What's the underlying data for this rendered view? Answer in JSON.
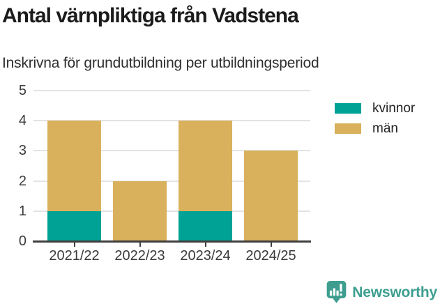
{
  "title": "Antal värnpliktiga från Vadstena",
  "subtitle": "Inskrivna för grundutbildning per utbildningsperiod",
  "chart_data": {
    "type": "bar",
    "stacked": true,
    "title": "Antal värnpliktiga från Vadstena",
    "subtitle": "Inskrivna för grundutbildning per utbildningsperiod",
    "categories": [
      "2021/22",
      "2022/23",
      "2023/24",
      "2024/25"
    ],
    "series": [
      {
        "name": "kvinnor",
        "color": "#00a296",
        "values": [
          1,
          0,
          1,
          0
        ]
      },
      {
        "name": "män",
        "color": "#d9b05b",
        "values": [
          3,
          2,
          3,
          3
        ]
      }
    ],
    "stacked_totals": [
      4,
      2,
      4,
      3
    ],
    "xlabel": "",
    "ylabel": "",
    "ylim": [
      0,
      5
    ],
    "yticks": [
      0,
      1,
      2,
      3,
      4,
      5
    ],
    "grid": true,
    "legend_position": "right"
  },
  "colors": {
    "title_text": "#1b1b1b",
    "subtitle_text": "#2e2e2e",
    "axis_line": "#3f3f3f",
    "grid_line": "#e3e3e3",
    "tick_label": "#3b3b3b",
    "brand_teal": "#3d9e90"
  },
  "footer": {
    "brand": "Newsworthy",
    "logo_icon": "bar-chart-pin-icon"
  }
}
